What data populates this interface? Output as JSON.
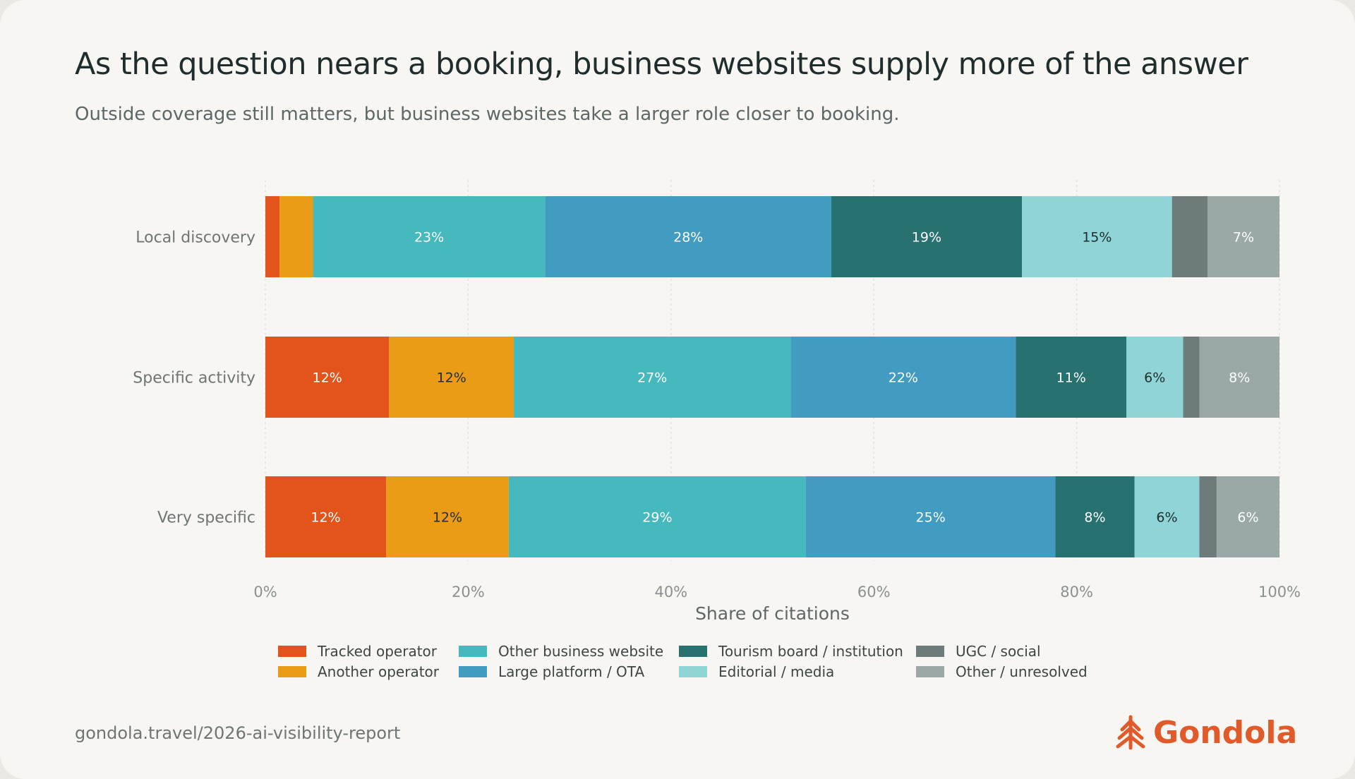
{
  "chart_data": {
    "type": "bar",
    "orientation": "horizontal",
    "stacked": true,
    "title": "As the question nears a booking, business websites supply more of the answer",
    "subtitle": "Outside coverage still matters, but business websites take a larger role closer to booking.",
    "xlabel": "Share of citations",
    "xlim": [
      0,
      100
    ],
    "xticks": [
      "0%",
      "20%",
      "40%",
      "60%",
      "80%",
      "100%"
    ],
    "grid": true,
    "legend_position": "bottom",
    "categories": [
      "Local discovery",
      "Specific activity",
      "Very specific"
    ],
    "series": [
      {
        "name": "Tracked operator",
        "color": "#e2541b",
        "values": [
          1.4,
          12.2,
          11.9
        ]
      },
      {
        "name": "Another operator",
        "color": "#eb9c16",
        "values": [
          3.3,
          12.3,
          12.1
        ]
      },
      {
        "name": "Other business website",
        "color": "#46b9bf",
        "values": [
          22.9,
          27.3,
          29.3
        ]
      },
      {
        "name": "Large platform / OTA",
        "color": "#429cc2",
        "values": [
          28.2,
          22.2,
          24.6
        ]
      },
      {
        "name": "Tourism board / institution",
        "color": "#277171",
        "values": [
          18.8,
          10.9,
          7.8
        ]
      },
      {
        "name": "Editorial / media",
        "color": "#8fd5d7",
        "values": [
          14.8,
          5.6,
          6.4
        ]
      },
      {
        "name": "UGC / social",
        "color": "#6e7b7b",
        "values": [
          3.5,
          1.6,
          1.7
        ]
      },
      {
        "name": "Other / unresolved",
        "color": "#9aa8a7",
        "values": [
          7.1,
          7.9,
          6.2
        ]
      }
    ],
    "data_labels": [
      [
        null,
        null,
        "23%",
        "28%",
        "19%",
        "15%",
        null,
        "7%"
      ],
      [
        "12%",
        "12%",
        "27%",
        "22%",
        "11%",
        "6%",
        null,
        "8%"
      ],
      [
        "12%",
        "12%",
        "29%",
        "25%",
        "8%",
        "6%",
        null,
        "6%"
      ]
    ]
  },
  "footer": {
    "source": "gondola.travel/2026-ai-visibility-report",
    "brand": "Gondola",
    "brand_color": "#e05a2a",
    "brand_icon": "gondola-logo-icon"
  }
}
